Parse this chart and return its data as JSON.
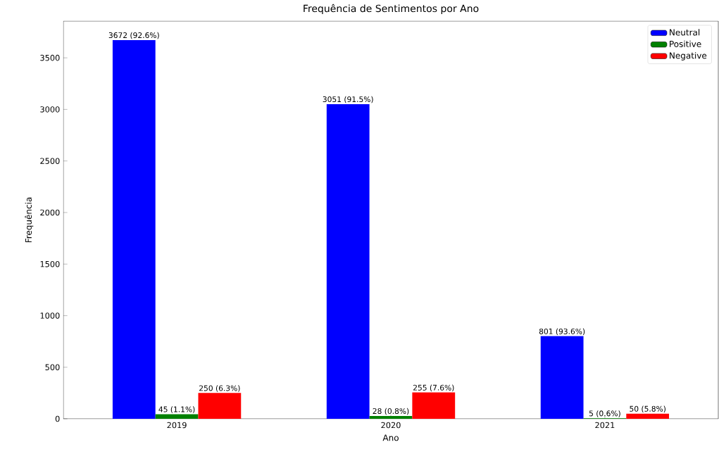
{
  "chart_data": {
    "type": "bar",
    "title": "Frequência de Sentimentos por Ano",
    "xlabel": "Ano",
    "ylabel": "Frequência",
    "categories": [
      "2019",
      "2020",
      "2021"
    ],
    "series": [
      {
        "name": "Neutral",
        "color": "#0000ff",
        "values": [
          3672,
          3051,
          801
        ],
        "value_labels": [
          "3672 (92.6%)",
          "3051 (91.5%)",
          "801 (93.6%)"
        ]
      },
      {
        "name": "Positive",
        "color": "#008000",
        "values": [
          45,
          28,
          5
        ],
        "value_labels": [
          "45 (1.1%)",
          "28 (0.8%)",
          "5 (0.6%)"
        ]
      },
      {
        "name": "Negative",
        "color": "#ff0000",
        "values": [
          250,
          255,
          50
        ],
        "value_labels": [
          "250 (6.3%)",
          "255 (7.6%)",
          "50 (5.8%)"
        ]
      }
    ],
    "ylim": [
      0,
      3856
    ],
    "yticks": [
      0,
      500,
      1000,
      1500,
      2000,
      2500,
      3000,
      3500
    ],
    "legend": "top right"
  }
}
